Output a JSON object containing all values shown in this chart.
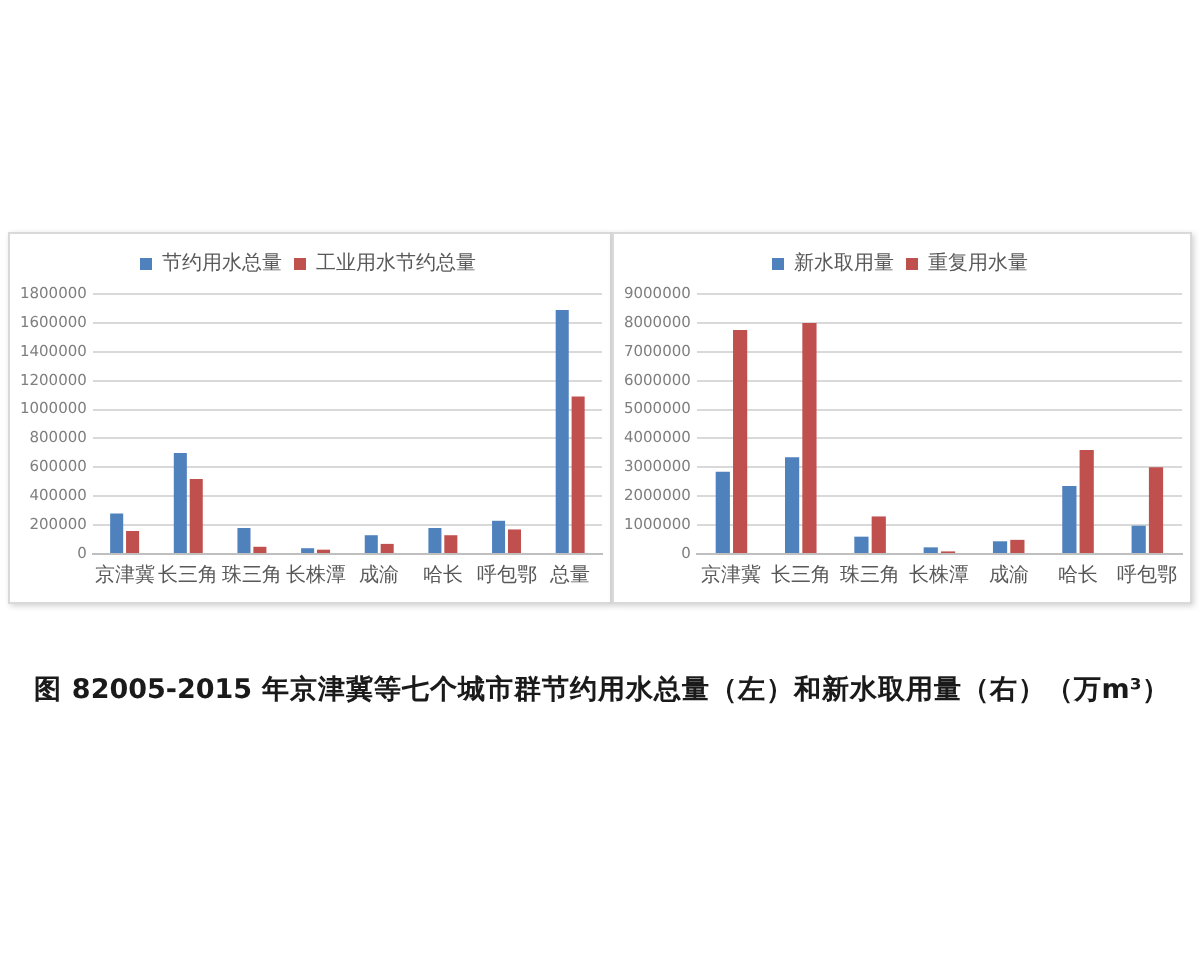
{
  "chart_data": [
    {
      "type": "bar",
      "categories": [
        "京津冀",
        "长三角",
        "珠三角",
        "长株潭",
        "成渝",
        "哈长",
        "呼包鄂",
        "总量"
      ],
      "series": [
        {
          "name": "节约用水总量",
          "color": "#4f81bd",
          "values": [
            280000,
            700000,
            180000,
            40000,
            130000,
            180000,
            230000,
            1690000
          ]
        },
        {
          "name": "工业用水节约总量",
          "color": "#c0504d",
          "values": [
            160000,
            520000,
            50000,
            30000,
            70000,
            130000,
            170000,
            1090000
          ]
        }
      ],
      "ylim": [
        0,
        1800000
      ],
      "yticks": [
        0,
        200000,
        400000,
        600000,
        800000,
        1000000,
        1200000,
        1400000,
        1600000,
        1800000
      ],
      "grid": "y",
      "legend": "top",
      "annotations": [
        "图 82005-2015 年京津冀等七个城市群节约用水总量（左）和新水取用量（右）（万m³）"
      ]
    },
    {
      "type": "bar",
      "categories": [
        "京津冀",
        "长三角",
        "珠三角",
        "长株潭",
        "成渝",
        "哈长",
        "呼包鄂"
      ],
      "series": [
        {
          "name": "新水取用量",
          "color": "#4f81bd",
          "values": [
            2850000,
            3350000,
            600000,
            230000,
            440000,
            2350000,
            980000
          ]
        },
        {
          "name": "重复用水量",
          "color": "#c0504d",
          "values": [
            7750000,
            8000000,
            1300000,
            90000,
            490000,
            3600000,
            3000000
          ]
        }
      ],
      "ylim": [
        0,
        9000000
      ],
      "yticks": [
        0,
        1000000,
        2000000,
        3000000,
        4000000,
        5000000,
        6000000,
        7000000,
        8000000,
        9000000
      ],
      "grid": "y",
      "legend": "top"
    }
  ]
}
